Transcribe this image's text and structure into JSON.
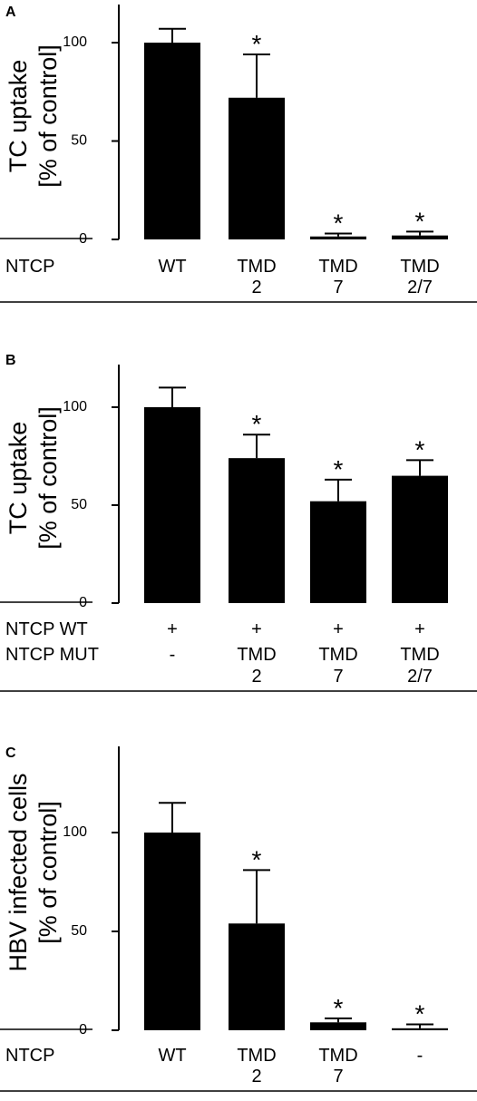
{
  "chart_data": [
    {
      "type": "bar",
      "panel_label": "A",
      "ylabel_lines": [
        "TC uptake",
        "[% of control]"
      ],
      "ylim": [
        0,
        120
      ],
      "yticks": [
        0,
        50,
        100
      ],
      "categories": [
        "WT",
        "TMD 2",
        "TMD 7",
        "TMD 2/7"
      ],
      "values": [
        100,
        72,
        1.5,
        2
      ],
      "errors": [
        7,
        22,
        1.5,
        2
      ],
      "significance": [
        "",
        "*",
        "*",
        "*"
      ],
      "table_rows": [
        {
          "label": "NTCP",
          "cells": [
            [
              "WT"
            ],
            [
              "TMD",
              "2"
            ],
            [
              "TMD",
              "7"
            ],
            [
              "TMD",
              "2/7"
            ]
          ]
        }
      ]
    },
    {
      "type": "bar",
      "panel_label": "B",
      "ylabel_lines": [
        "TC uptake",
        "[% of control]"
      ],
      "ylim": [
        0,
        125
      ],
      "yticks": [
        0,
        50,
        100
      ],
      "categories": [
        "WT",
        "TMD 2",
        "TMD 7",
        "TMD 2/7"
      ],
      "values": [
        100,
        74,
        52,
        65
      ],
      "errors": [
        10,
        12,
        11,
        8
      ],
      "significance": [
        "",
        "*",
        "*",
        "*"
      ],
      "table_rows": [
        {
          "label": "NTCP WT",
          "cells": [
            [
              "+"
            ],
            [
              "+"
            ],
            [
              "+"
            ],
            [
              "+"
            ]
          ]
        },
        {
          "label": "NTCP MUT",
          "cells": [
            [
              "-"
            ],
            [
              "TMD",
              "2"
            ],
            [
              "TMD",
              "7"
            ],
            [
              "TMD",
              "2/7"
            ]
          ]
        }
      ]
    },
    {
      "type": "bar",
      "panel_label": "C",
      "ylabel_lines": [
        "HBV infected cells",
        "[% of control]"
      ],
      "ylim": [
        0,
        122
      ],
      "yticks": [
        0,
        50,
        100
      ],
      "categories": [
        "WT",
        "TMD 2",
        "TMD 7",
        "-"
      ],
      "values": [
        100,
        54,
        4,
        1
      ],
      "errors": [
        15,
        27,
        2,
        2
      ],
      "significance": [
        "",
        "*",
        "*",
        "*"
      ],
      "table_rows": [
        {
          "label": "NTCP",
          "cells": [
            [
              "WT"
            ],
            [
              "TMD",
              "2"
            ],
            [
              "TMD",
              "7"
            ],
            [
              "-"
            ]
          ]
        }
      ]
    }
  ]
}
